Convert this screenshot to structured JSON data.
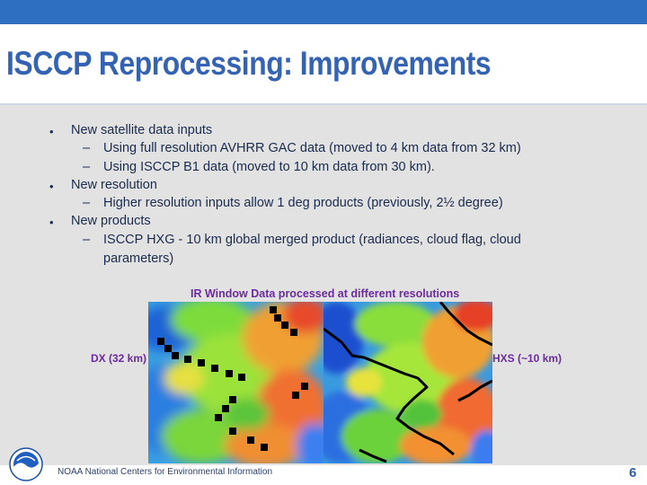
{
  "slide": {
    "title": "ISCCP Reprocessing: Improvements",
    "bullets": [
      {
        "text": "New satellite data inputs",
        "sub": [
          "Using full resolution AVHRR GAC data (moved to 4 km data from 32 km)",
          "Using ISCCP B1 data (moved to 10 km data from 30 km)."
        ]
      },
      {
        "text": "New resolution",
        "sub": [
          "Higher resolution inputs allow 1 deg products (previously, 2½ degree)"
        ]
      },
      {
        "text": "New products",
        "sub_line1": "ISCCP HXG - 10 km global merged product (radiances, cloud flag, cloud",
        "sub_line2": "parameters)"
      }
    ],
    "bullet_char": "•",
    "dash_char": "–"
  },
  "figure": {
    "title": "IR Window Data processed at different resolutions",
    "left_label": "DX (32 km)",
    "right_label": "HXS (~10 km)"
  },
  "footer": {
    "org": "NOAA National Centers for Environmental Information",
    "page_number": "6",
    "logo_text": "NOAA"
  },
  "colors": {
    "accent": "#2e6fc1",
    "title": "#3563b3",
    "figure_label": "#6b2aa0"
  }
}
